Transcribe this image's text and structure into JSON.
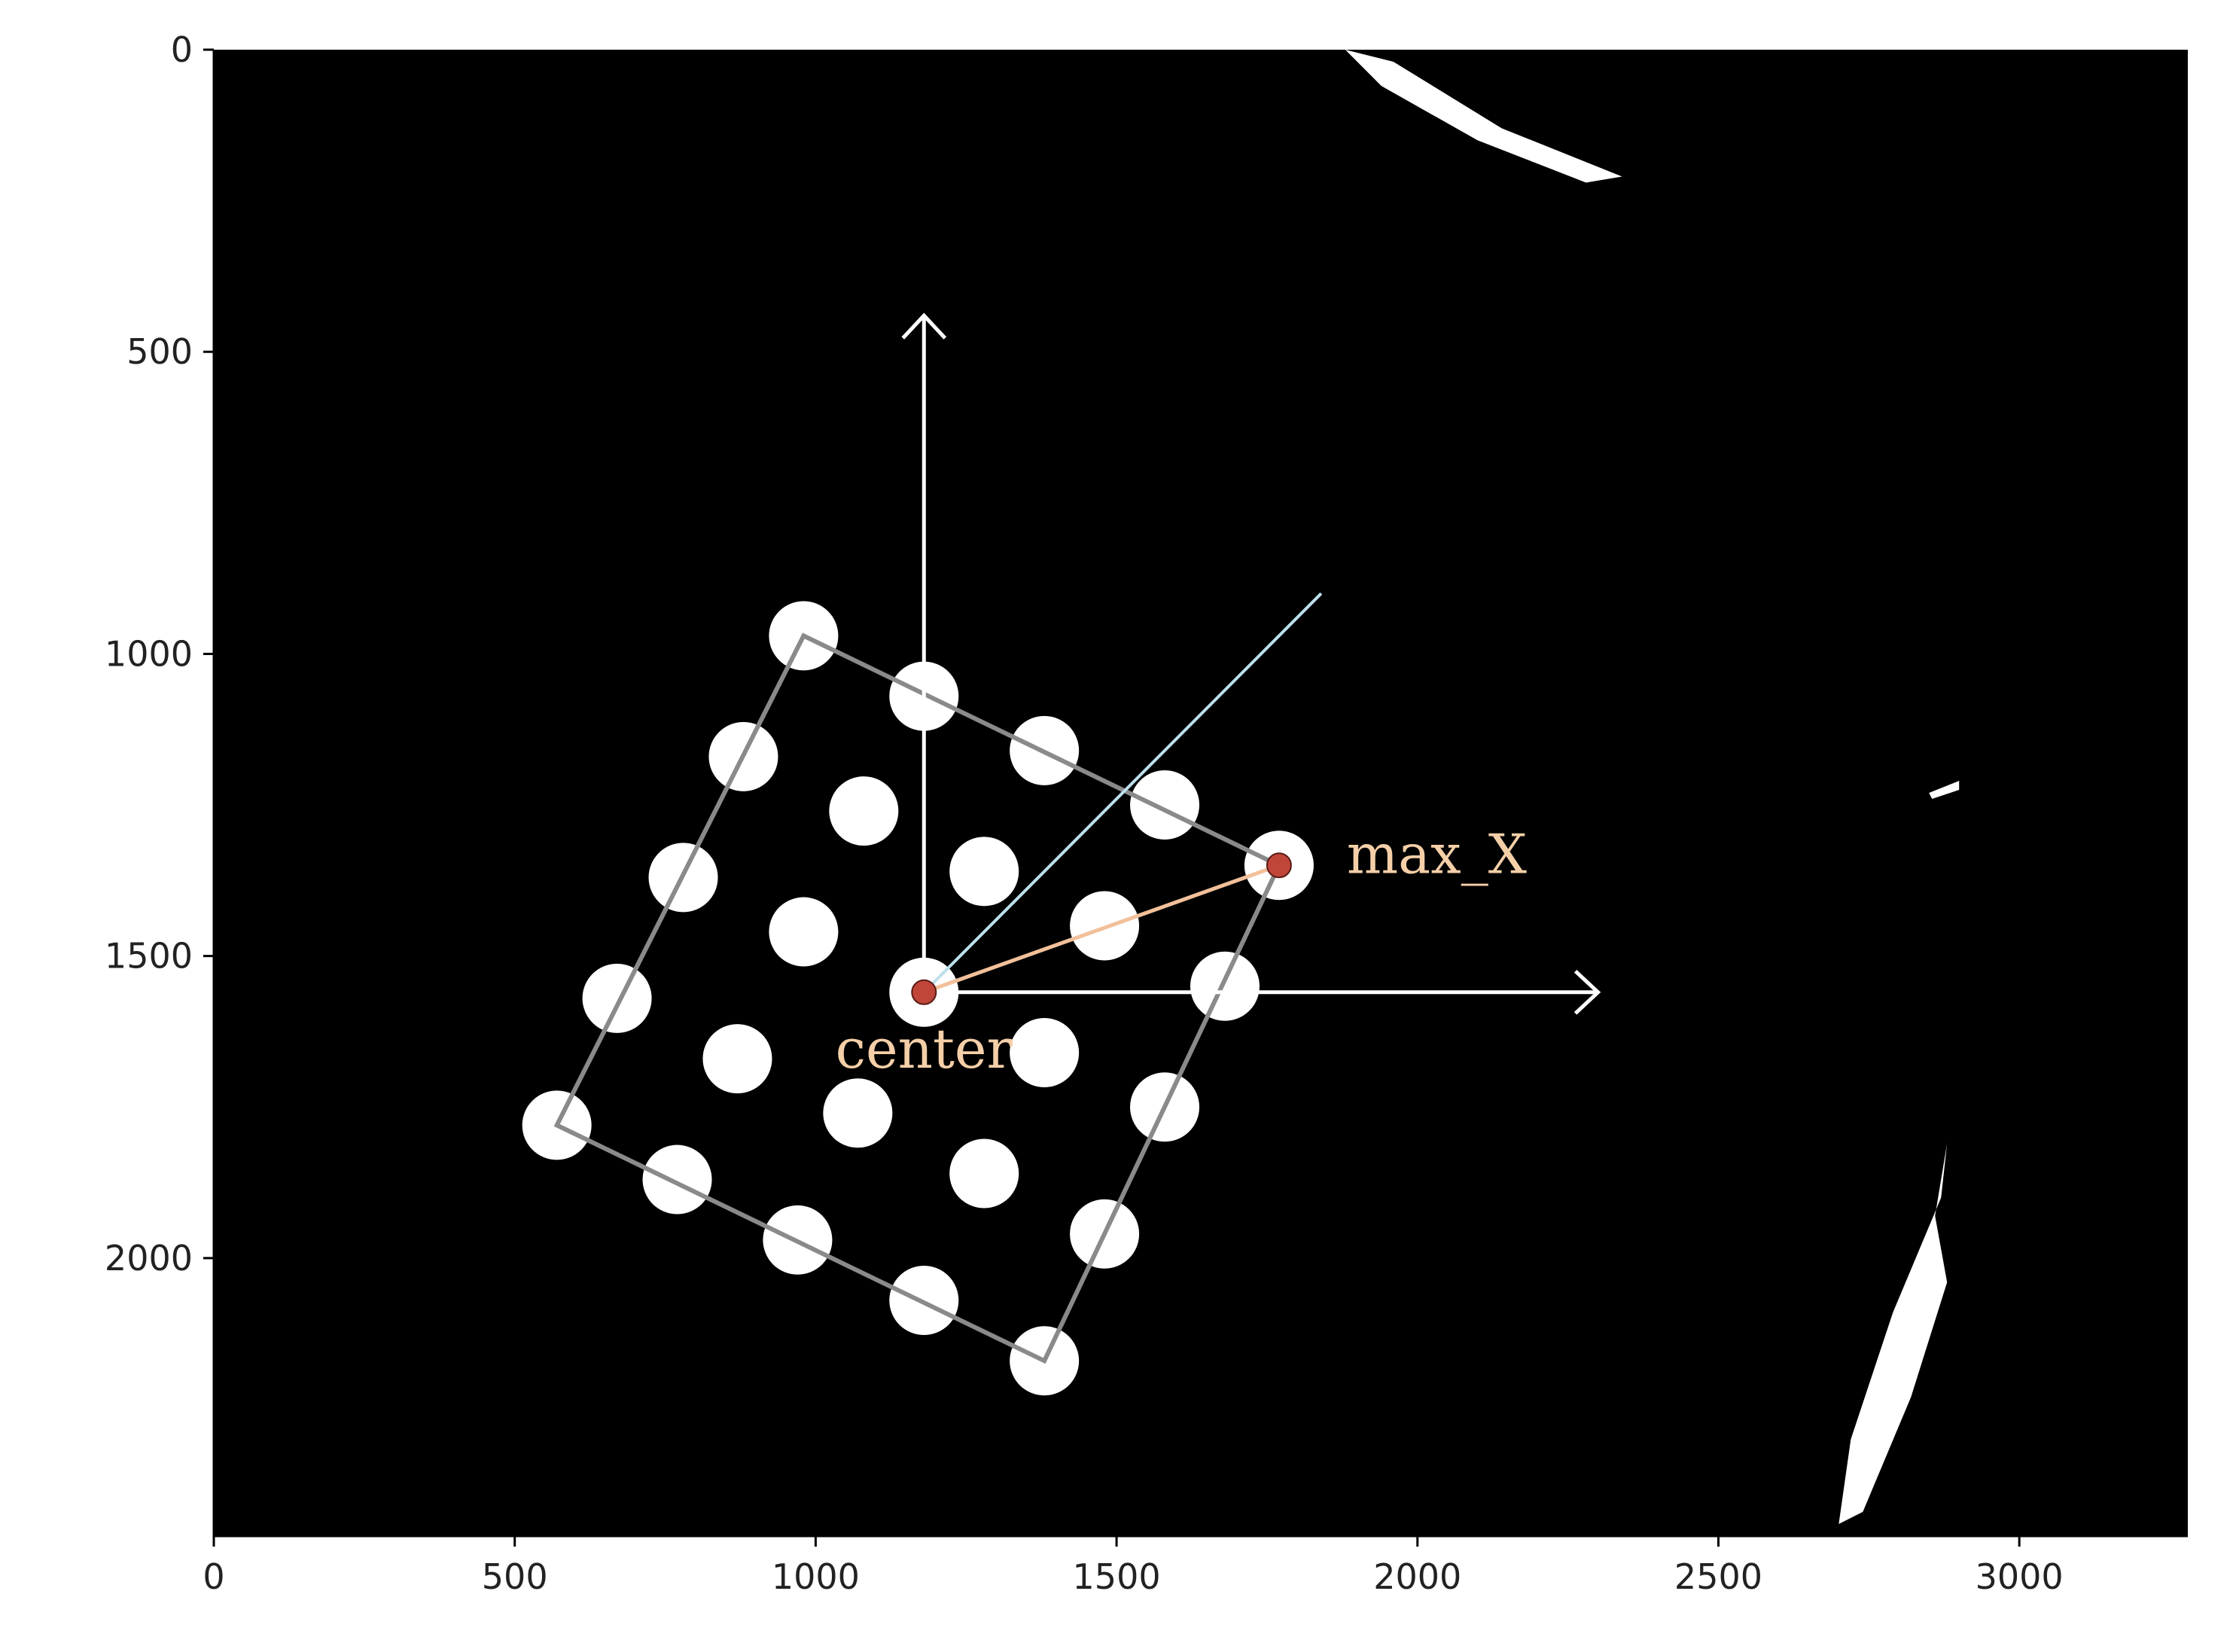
{
  "chart_data": {
    "type": "scatter",
    "title": "",
    "xlabel": "",
    "ylabel": "",
    "xlim": [
      0,
      3280
    ],
    "ylim": [
      2460,
      0
    ],
    "x_ticks": [
      0,
      500,
      1000,
      1500,
      2000,
      2500,
      3000
    ],
    "y_ticks": [
      0,
      500,
      1000,
      1500,
      2000
    ],
    "x_tick_labels": [
      "0",
      "500",
      "1000",
      "1500",
      "2000",
      "2500",
      "3000"
    ],
    "y_tick_labels": [
      "0",
      "500",
      "1000",
      "1500",
      "2000"
    ],
    "grid": false,
    "background": "#000000",
    "dot_color": "#ffffff",
    "dots": [
      {
        "x": 980,
        "y": 970
      },
      {
        "x": 1180,
        "y": 1070
      },
      {
        "x": 1380,
        "y": 1160
      },
      {
        "x": 1580,
        "y": 1250
      },
      {
        "x": 1770,
        "y": 1350
      },
      {
        "x": 880,
        "y": 1170
      },
      {
        "x": 1080,
        "y": 1260
      },
      {
        "x": 1280,
        "y": 1360
      },
      {
        "x": 1480,
        "y": 1450
      },
      {
        "x": 1680,
        "y": 1550
      },
      {
        "x": 780,
        "y": 1370
      },
      {
        "x": 980,
        "y": 1460
      },
      {
        "x": 1180,
        "y": 1560
      },
      {
        "x": 1380,
        "y": 1660
      },
      {
        "x": 1580,
        "y": 1750
      },
      {
        "x": 670,
        "y": 1570
      },
      {
        "x": 870,
        "y": 1670
      },
      {
        "x": 1070,
        "y": 1760
      },
      {
        "x": 1280,
        "y": 1860
      },
      {
        "x": 1480,
        "y": 1960
      },
      {
        "x": 570,
        "y": 1780
      },
      {
        "x": 770,
        "y": 1870
      },
      {
        "x": 970,
        "y": 1970
      },
      {
        "x": 1180,
        "y": 2070
      },
      {
        "x": 1380,
        "y": 2170
      }
    ],
    "outline_polygon": [
      {
        "x": 980,
        "y": 970
      },
      {
        "x": 1770,
        "y": 1350
      },
      {
        "x": 1380,
        "y": 2170
      },
      {
        "x": 570,
        "y": 1780
      }
    ],
    "outline_color": "#8a8a8a",
    "blobs": [
      {
        "points": [
          [
            1880,
            0
          ],
          [
            1960,
            20
          ],
          [
            2140,
            130
          ],
          [
            2340,
            210
          ],
          [
            2280,
            220
          ],
          [
            2100,
            150
          ],
          [
            1940,
            60
          ]
        ]
      },
      {
        "points": [
          [
            2880,
            1810
          ],
          [
            2870,
            1900
          ],
          [
            2790,
            2090
          ],
          [
            2720,
            2300
          ],
          [
            2700,
            2440
          ],
          [
            2740,
            2420
          ],
          [
            2820,
            2230
          ],
          [
            2880,
            2040
          ],
          [
            2860,
            1930
          ]
        ]
      },
      {
        "points": [
          [
            2850,
            1230
          ],
          [
            2900,
            1210
          ],
          [
            2900,
            1225
          ],
          [
            2855,
            1240
          ]
        ]
      }
    ],
    "axes_arrows": {
      "origin": {
        "x": 1180,
        "y": 1560
      },
      "up_to": {
        "x": 1180,
        "y": 440
      },
      "right_to": {
        "x": 2300,
        "y": 1560
      },
      "color": "#ffffff"
    },
    "diagonal_line": {
      "from": {
        "x": 1180,
        "y": 1560
      },
      "to": {
        "x": 1840,
        "y": 900
      },
      "color": "#bde0ec"
    },
    "max_x_segment": {
      "from": {
        "x": 1180,
        "y": 1560
      },
      "to": {
        "x": 1770,
        "y": 1350
      },
      "color": "#f2c09a"
    },
    "marker_color": "#c0463a",
    "center_point": {
      "x": 1180,
      "y": 1560
    },
    "max_x_point": {
      "x": 1770,
      "y": 1350
    },
    "annotations": {
      "center_label": "center",
      "max_x_label": "max_X"
    }
  }
}
